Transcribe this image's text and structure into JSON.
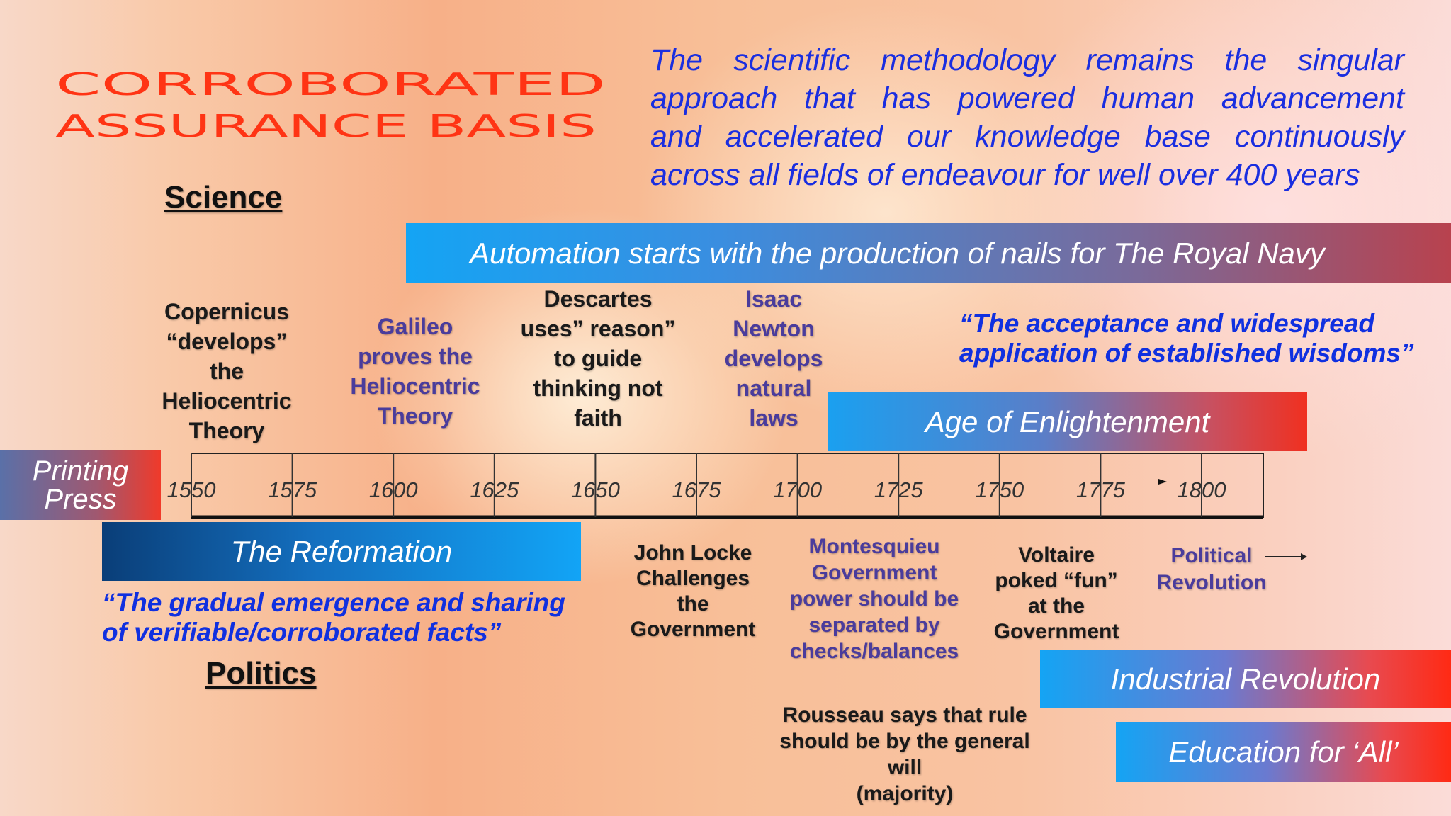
{
  "title": [
    "CORROBORATED",
    "ASSURANCE BASIS"
  ],
  "intro": [
    "The scientific methodology remains the singular",
    "approach that has powered human advancement",
    "and accelerated our knowledge base continuously",
    "across all fields of endeavour for well over 400 years"
  ],
  "sections": {
    "science": "Science",
    "politics": "Politics"
  },
  "bands": [
    {
      "label": [
        "Automation starts with the production of nails for The Royal Navy"
      ]
    },
    {
      "label": [
        "Age of Enlightenment"
      ]
    },
    {
      "label": [
        "Printing",
        "Press"
      ]
    },
    {
      "label": [
        "The Reformation"
      ]
    },
    {
      "label": [
        "Industrial Revolution"
      ]
    },
    {
      "label": [
        "Education for ‘All’"
      ]
    }
  ],
  "timeline": {
    "ticks": [
      1550,
      1575,
      1600,
      1625,
      1650,
      1675,
      1700,
      1725,
      1750,
      1775,
      1800
    ]
  },
  "events_above": [
    {
      "lines": [
        "Copernicus",
        "“develops”",
        "the",
        "Heliocentric",
        "Theory"
      ]
    },
    {
      "lines": [
        "Galileo",
        "proves the",
        "Heliocentric",
        "Theory"
      ]
    },
    {
      "lines": [
        "Descartes",
        "uses” reason”",
        "to guide",
        "thinking not",
        "faith"
      ]
    },
    {
      "lines": [
        "Isaac",
        "Newton",
        "develops",
        "natural",
        "laws"
      ]
    }
  ],
  "events_below": [
    {
      "lines": [
        "John Locke",
        "Challenges",
        "the",
        "Government"
      ]
    },
    {
      "lines": [
        "Montesquieu",
        "Government",
        "power should be",
        "separated by",
        "checks/balances"
      ]
    },
    {
      "lines": [
        "Voltaire",
        "poked “fun”",
        "at the",
        "Government"
      ]
    },
    {
      "lines": [
        "Political",
        "Revolution"
      ]
    },
    {
      "lines": [
        "Rousseau says that rule",
        "should be by the general",
        "will",
        "(majority)"
      ]
    }
  ],
  "quotes": [
    [
      "“The acceptance and widespread",
      "application of established wisdoms”"
    ],
    [
      "“The gradual emergence and sharing",
      "of verifiable/corroborated facts”"
    ]
  ]
}
